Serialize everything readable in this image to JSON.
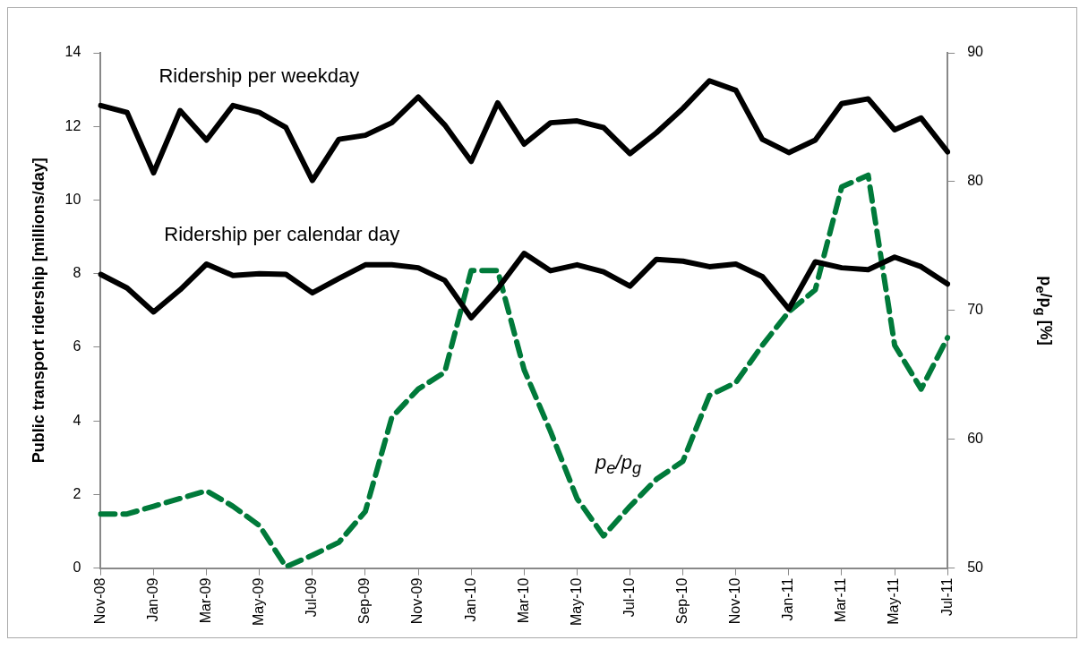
{
  "chart_data": {
    "type": "line",
    "ylabel": "Public transport ridership [millions/day]",
    "y2label": "p$_{e}$/p$_{g}$ [%]",
    "categories": [
      "Nov-08",
      null,
      "Jan-09",
      null,
      "Mar-09",
      null,
      "May-09",
      null,
      "Jul-09",
      null,
      "Sep-09",
      null,
      "Nov-09",
      null,
      "Jan-10",
      null,
      "Mar-10",
      null,
      "May-10",
      null,
      "Jul-10",
      null,
      "Sep-10",
      null,
      "Nov-10",
      null,
      "Jan-11",
      null,
      "Mar-11",
      null,
      "May-11",
      null,
      "Jul-11"
    ],
    "series": [
      {
        "name": "Ridership per weekday",
        "color": "#000000",
        "line_style": "solid",
        "values": [
          12.57,
          12.38,
          10.74,
          12.43,
          11.63,
          12.57,
          12.38,
          11.97,
          10.53,
          11.65,
          11.76,
          12.1,
          12.8,
          12.04,
          11.05,
          12.64,
          11.52,
          12.1,
          12.15,
          11.97,
          11.26,
          11.83,
          12.49,
          13.24,
          12.98,
          11.65,
          11.29,
          11.63,
          12.62,
          12.75,
          11.91,
          12.23,
          11.31
        ]
      },
      {
        "name": "Ridership per calendar day",
        "color": "#000000",
        "line_style": "solid",
        "values": [
          7.98,
          7.61,
          6.96,
          7.56,
          8.26,
          7.95,
          8.0,
          7.98,
          7.48,
          7.87,
          8.24,
          8.24,
          8.16,
          7.82,
          6.8,
          7.59,
          8.55,
          8.08,
          8.24,
          8.05,
          7.66,
          8.39,
          8.34,
          8.19,
          8.26,
          7.92,
          7.04,
          8.32,
          8.16,
          8.11,
          8.45,
          8.19,
          7.72
        ]
      },
      {
        "name": "p$_{e}$/p$_{g}$",
        "color": "#007a3a",
        "line_style": "dashed",
        "axis": "y2",
        "values": [
          54.2,
          54.2,
          54.8,
          55.4,
          56.0,
          54.8,
          53.3,
          50.1,
          51.0,
          52.0,
          54.4,
          61.7,
          63.9,
          65.2,
          73.1,
          73.1,
          65.4,
          60.6,
          55.4,
          52.5,
          54.8,
          56.9,
          58.3,
          63.4,
          64.4,
          67.3,
          69.9,
          71.6,
          79.6,
          80.5,
          67.3,
          63.9,
          67.9
        ]
      }
    ],
    "ylim": [
      0,
      14
    ],
    "yticks": [
      0,
      2,
      4,
      6,
      8,
      10,
      12,
      14
    ],
    "y2lim": [
      50,
      90
    ],
    "y2ticks": [
      50,
      60,
      70,
      80,
      90
    ],
    "grid": false,
    "legend": false,
    "marker": "none"
  }
}
